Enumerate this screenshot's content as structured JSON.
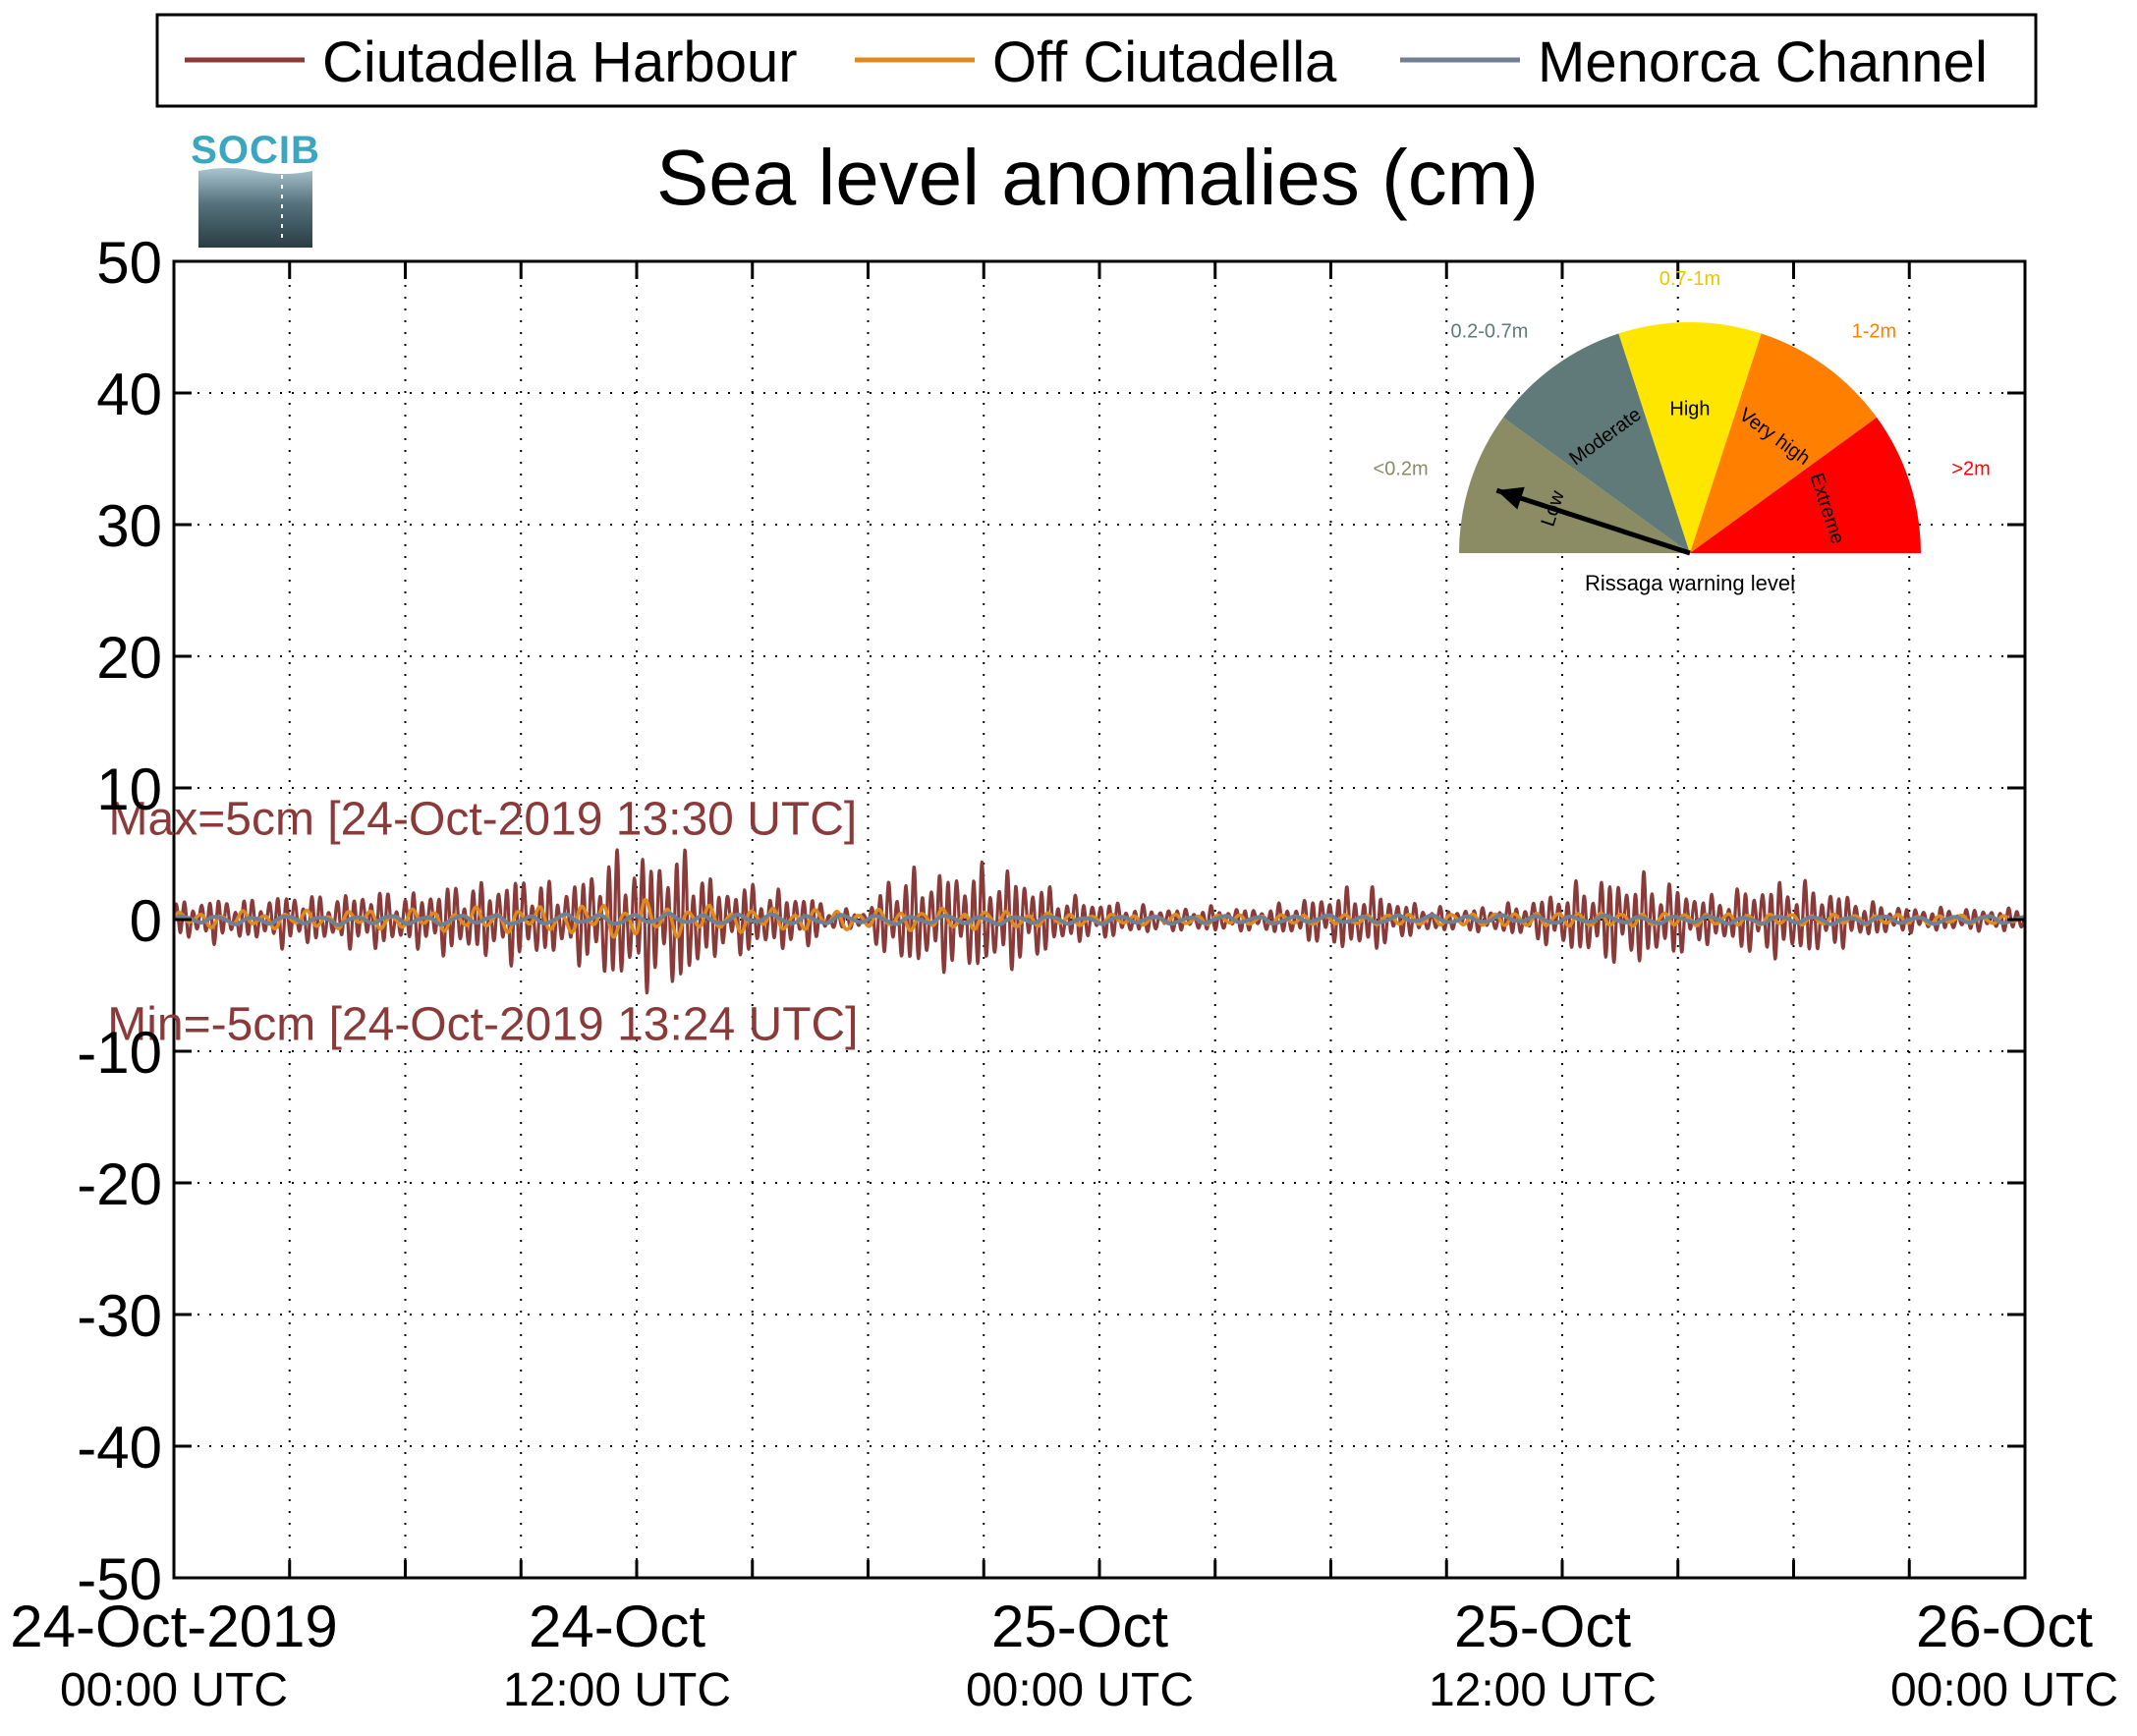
{
  "logo_text": "SOCIB",
  "chart_data": {
    "type": "line",
    "title": "Sea level anomalies (cm)",
    "xlabel": "",
    "ylabel": "",
    "ylim": [
      -50,
      50
    ],
    "yticks": [
      50,
      40,
      30,
      20,
      10,
      0,
      -10,
      -20,
      -30,
      -40,
      -50
    ],
    "xlim": [
      "2019-10-24 00:00",
      "2019-10-26 00:00"
    ],
    "grid": true,
    "legend_position": "top",
    "x_tick_labels": [
      {
        "hours": 0,
        "line1": "24-Oct-2019",
        "line2": "00:00 UTC"
      },
      {
        "hours": 12,
        "line1": "24-Oct",
        "line2": "12:00 UTC"
      },
      {
        "hours": 24,
        "line1": "25-Oct",
        "line2": "00:00 UTC"
      },
      {
        "hours": 36,
        "line1": "25-Oct",
        "line2": "12:00 UTC"
      },
      {
        "hours": 48,
        "line1": "26-Oct",
        "line2": "00:00 UTC"
      }
    ],
    "x_minor_ticks_hours": [
      3,
      6,
      9,
      15,
      18,
      21,
      27,
      30,
      33,
      39,
      42,
      45
    ],
    "series": [
      {
        "name": "Ciutadella Harbour",
        "color": "#8b3a3a",
        "envelope_cm": [
          [
            0,
            1.2
          ],
          [
            1,
            1.6
          ],
          [
            2,
            1.4
          ],
          [
            3,
            2.0
          ],
          [
            4,
            1.6
          ],
          [
            5,
            2.2
          ],
          [
            6,
            1.8
          ],
          [
            7,
            2.5
          ],
          [
            8,
            2.6
          ],
          [
            9,
            3.2
          ],
          [
            10,
            2.4
          ],
          [
            10.5,
            3.0
          ],
          [
            11,
            4.2
          ],
          [
            11.5,
            4.8
          ],
          [
            12,
            4.6
          ],
          [
            12.5,
            5.0
          ],
          [
            13,
            4.8
          ],
          [
            13.5,
            5.0
          ],
          [
            14,
            2.5
          ],
          [
            15,
            2.6
          ],
          [
            15.5,
            2.0
          ],
          [
            16,
            2.2
          ],
          [
            16.5,
            1.8
          ],
          [
            17,
            0.8
          ],
          [
            18,
            0.6
          ],
          [
            18.5,
            3.2
          ],
          [
            19,
            3.4
          ],
          [
            20,
            3.6
          ],
          [
            21,
            3.8
          ],
          [
            22,
            3.4
          ],
          [
            22.5,
            2.6
          ],
          [
            23,
            1.8
          ],
          [
            24,
            1.4
          ],
          [
            25,
            1.0
          ],
          [
            26,
            0.8
          ],
          [
            27,
            0.9
          ],
          [
            28,
            0.8
          ],
          [
            29,
            1.2
          ],
          [
            30,
            2.0
          ],
          [
            31,
            2.4
          ],
          [
            32,
            1.2
          ],
          [
            33,
            0.8
          ],
          [
            34,
            0.9
          ],
          [
            35,
            1.2
          ],
          [
            36,
            2.2
          ],
          [
            37,
            3.0
          ],
          [
            38,
            3.2
          ],
          [
            39,
            2.5
          ],
          [
            40,
            1.6
          ],
          [
            41,
            2.6
          ],
          [
            42,
            2.8
          ],
          [
            43,
            2.2
          ],
          [
            44,
            1.2
          ],
          [
            45,
            0.9
          ],
          [
            46,
            0.8
          ],
          [
            47,
            0.8
          ],
          [
            48,
            0.8
          ]
        ]
      },
      {
        "name": "Off Ciutadella",
        "color": "#e08a1e",
        "envelope_cm": [
          [
            0,
            0.5
          ],
          [
            6,
            0.7
          ],
          [
            10,
            0.9
          ],
          [
            12,
            1.4
          ],
          [
            14,
            0.9
          ],
          [
            18,
            0.7
          ],
          [
            20,
            0.8
          ],
          [
            24,
            0.4
          ],
          [
            30,
            0.4
          ],
          [
            36,
            0.6
          ],
          [
            40,
            0.5
          ],
          [
            44,
            0.4
          ],
          [
            48,
            0.3
          ]
        ]
      },
      {
        "name": "Menorca Channel",
        "color": "#6f7f94",
        "envelope_cm": [
          [
            0,
            0.3
          ],
          [
            12,
            0.4
          ],
          [
            24,
            0.3
          ],
          [
            36,
            0.3
          ],
          [
            48,
            0.3
          ]
        ]
      }
    ],
    "annotations": [
      {
        "text": "Max=5cm [24-Oct-2019 13:30 UTC]",
        "hours": 7.5,
        "y_cm": 7.8,
        "color": "#8b3a3a"
      },
      {
        "text": "Min=-5cm [24-Oct-2019 13:24 UTC]",
        "hours": 7.5,
        "y_cm": -7.8,
        "color": "#8b3a3a"
      }
    ],
    "warning_gauge": {
      "title": "Rissaga warning level",
      "current_level": "Low",
      "sectors": [
        {
          "label": "Low",
          "range": "<0.2m",
          "color": "#8b8b64",
          "range_color": "#8b8b64"
        },
        {
          "label": "Moderate",
          "range": "0.2-0.7m",
          "color": "#5f7a78",
          "range_color": "#5f7a78"
        },
        {
          "label": "High",
          "range": "0.7-1m",
          "color": "#ffe600",
          "range_color": "#e5c800"
        },
        {
          "label": "Very high",
          "range": "1-2m",
          "color": "#ff8000",
          "range_color": "#ff8000"
        },
        {
          "label": "Extreme",
          "range": ">2m",
          "color": "#ff0000",
          "range_color": "#ff0000"
        }
      ]
    }
  }
}
